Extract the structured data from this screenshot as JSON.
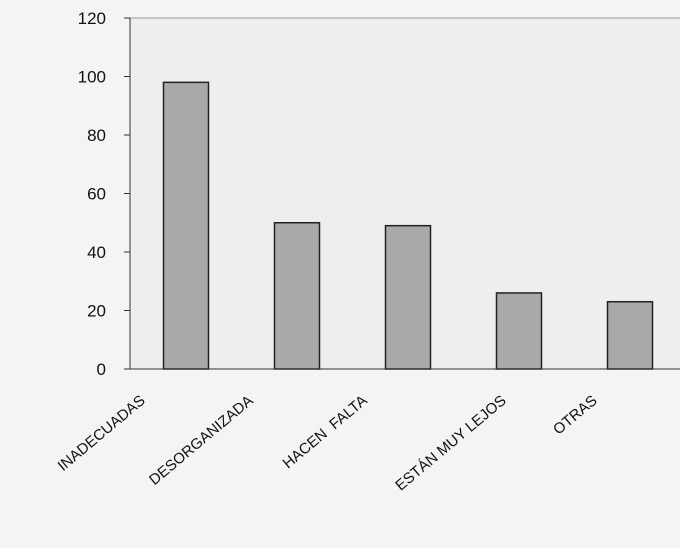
{
  "chart_data": {
    "type": "bar",
    "title": "",
    "xlabel": "",
    "ylabel": "",
    "categories": [
      "INADECUADAS",
      "DESORGANIZADA",
      "HACEN  FALTA",
      "ESTÁN MUY LEJOS",
      "OTRAS"
    ],
    "values": [
      98,
      50,
      49,
      26,
      23
    ],
    "ylim": [
      0,
      120
    ],
    "yticks": [
      "0",
      "20",
      "40",
      "60",
      "80",
      "100",
      "120"
    ],
    "grid": false,
    "legend": "none",
    "colors": {
      "bar_fill": "#a9a9a9",
      "bar_stroke": "#222222",
      "plot_bg": "#eeeeec",
      "axis": "#333333"
    }
  }
}
